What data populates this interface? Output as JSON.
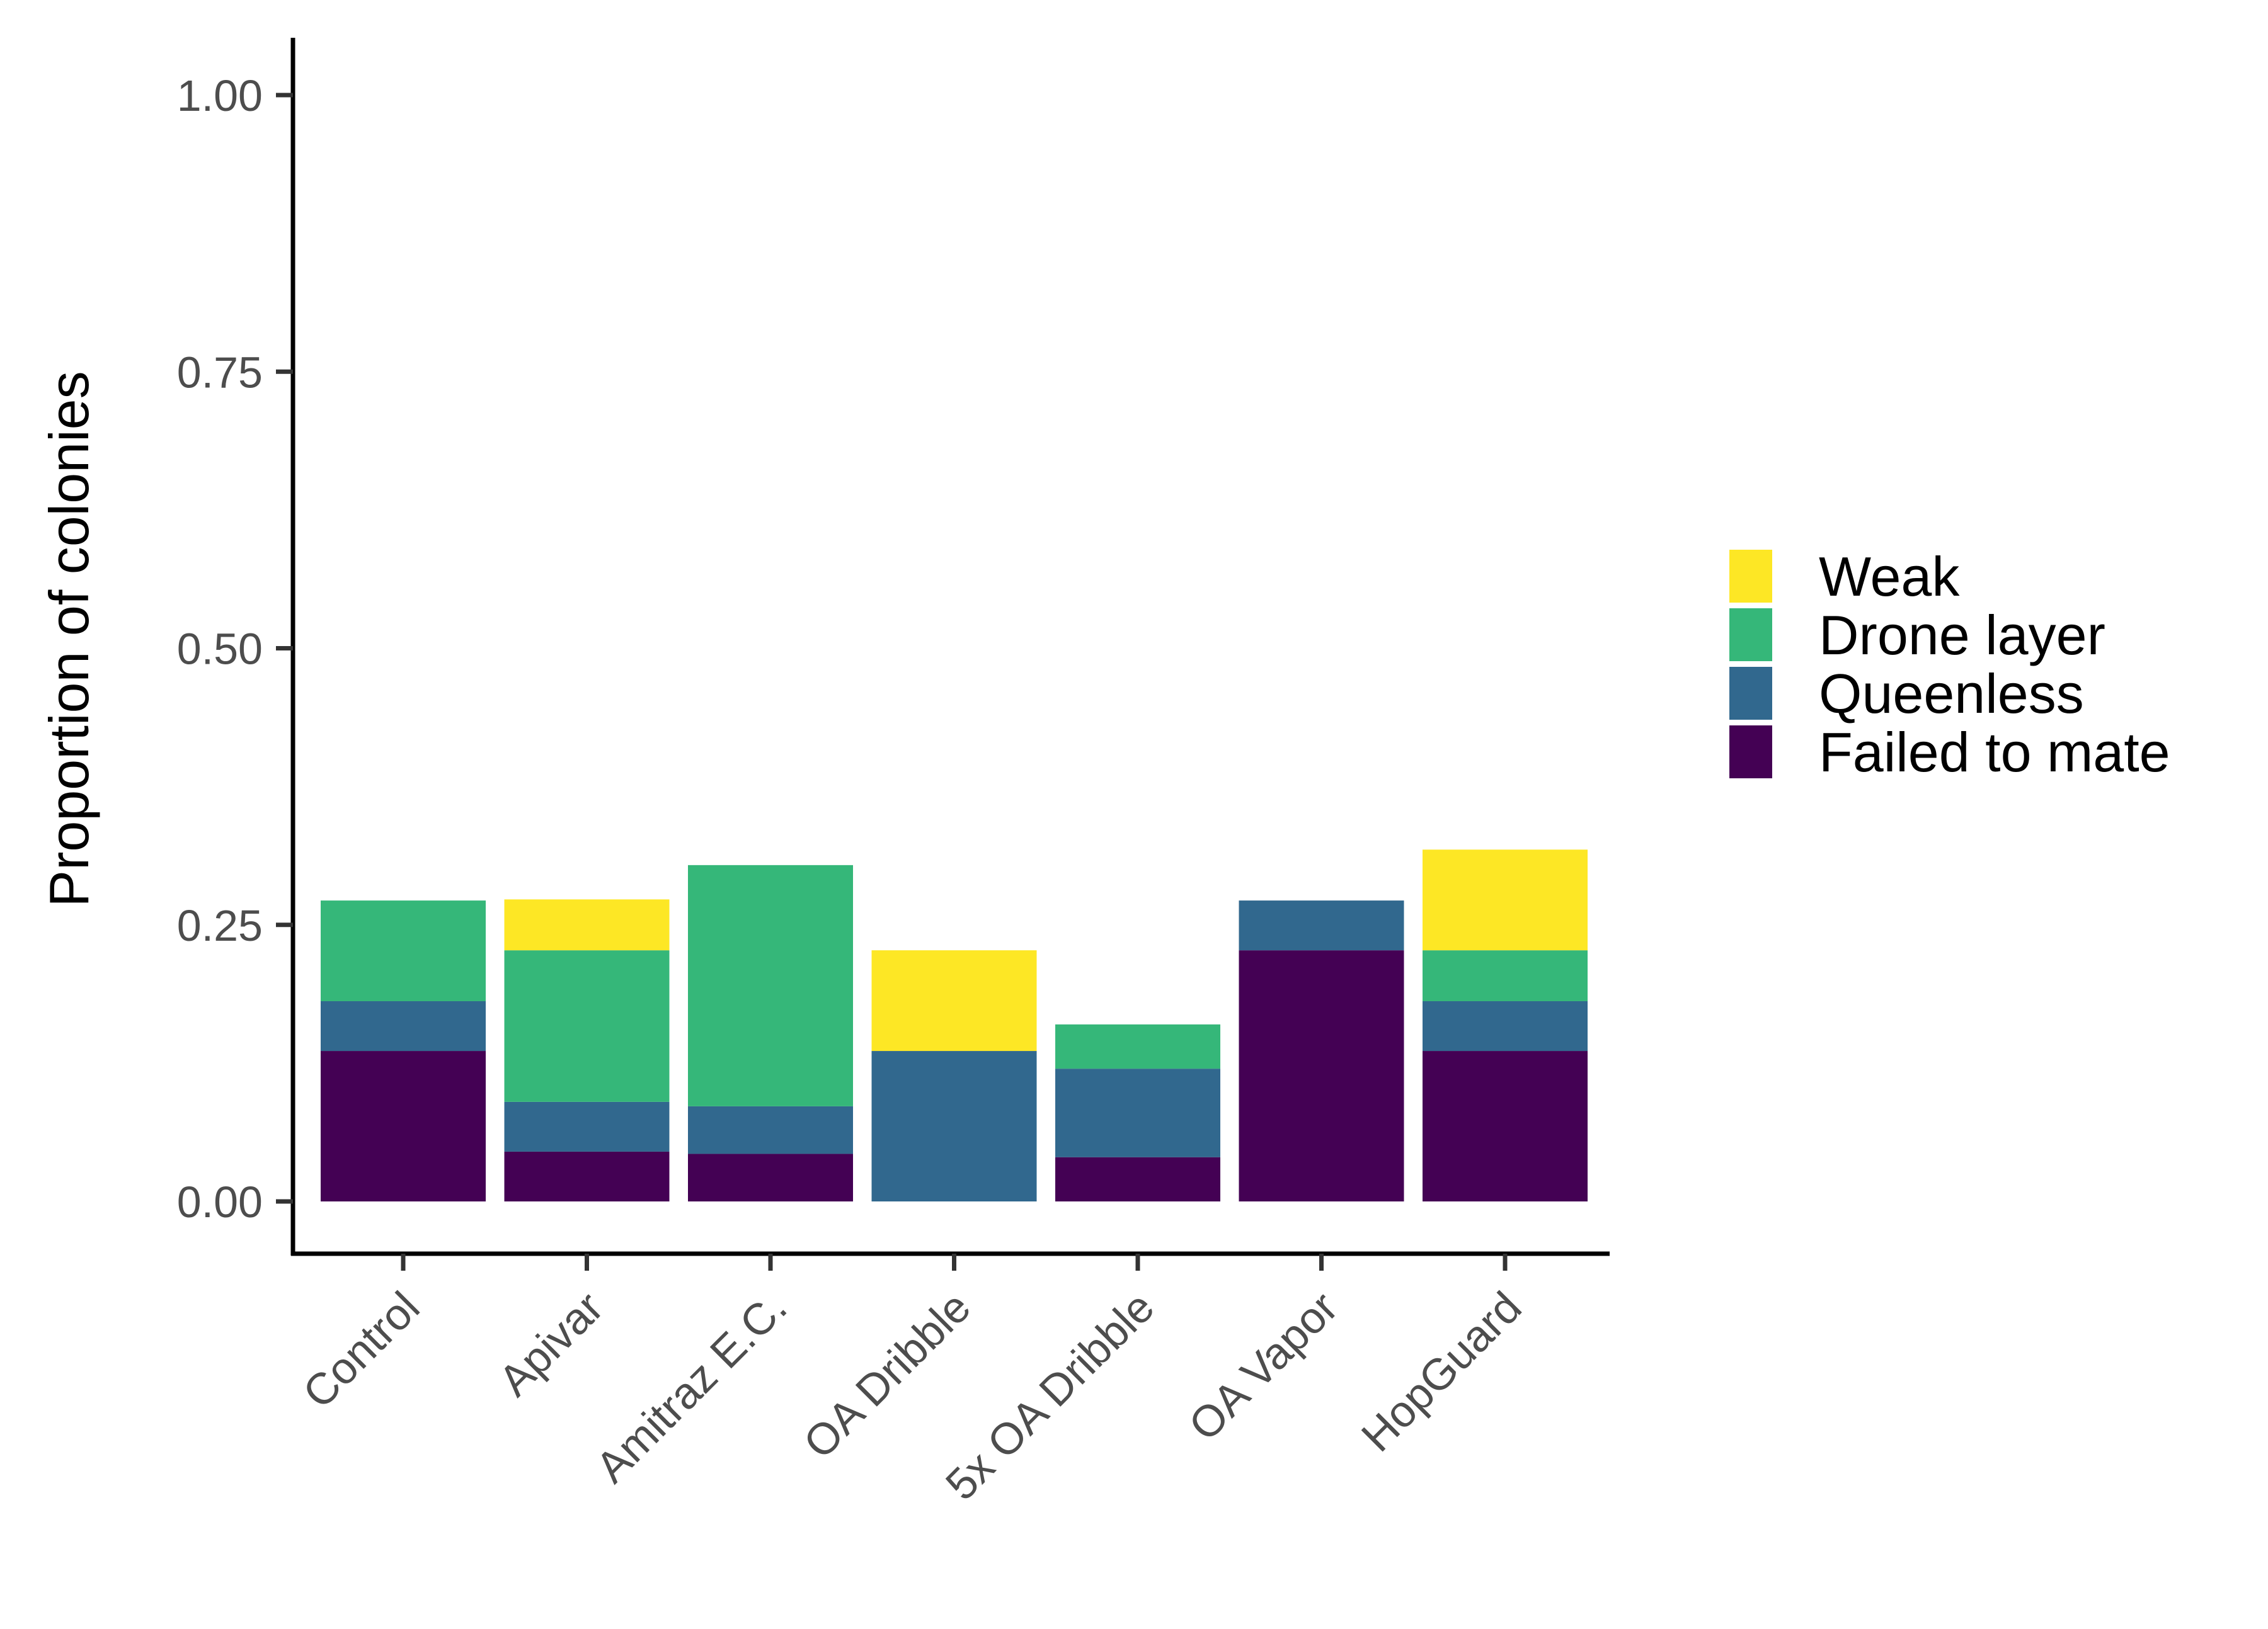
{
  "chart_data": {
    "type": "bar",
    "stacked": true,
    "title": "",
    "xlabel": "",
    "ylabel": "Proportion of colonies",
    "ylim": [
      0,
      1.05
    ],
    "yticks": [
      0,
      0.25,
      0.5,
      0.75,
      1
    ],
    "ytick_labels": [
      "0.00",
      "0.25",
      "0.50",
      "0.75",
      "1.00"
    ],
    "grid": false,
    "legend_position": "right",
    "categories": [
      "Control",
      "Apivar",
      "Amitraz E.C.",
      "OA Dribble",
      "5x OA Dribble",
      "OA Vapor",
      "HopGuard"
    ],
    "series": [
      {
        "name": "Failed to mate",
        "color": "#440154",
        "values": [
          0.136,
          0.045,
          0.043,
          0.0,
          0.04,
          0.227,
          0.136
        ]
      },
      {
        "name": "Queenless",
        "color": "#31688E",
        "values": [
          0.045,
          0.045,
          0.043,
          0.136,
          0.08,
          0.045,
          0.045
        ]
      },
      {
        "name": "Drone layer",
        "color": "#35B779",
        "values": [
          0.091,
          0.137,
          0.218,
          0.0,
          0.04,
          0.0,
          0.046
        ]
      },
      {
        "name": "Weak",
        "color": "#FDE725",
        "values": [
          0.0,
          0.046,
          0.0,
          0.091,
          0.0,
          0.0,
          0.091
        ]
      }
    ],
    "legend_order": [
      "Weak",
      "Drone layer",
      "Queenless",
      "Failed to mate"
    ]
  }
}
